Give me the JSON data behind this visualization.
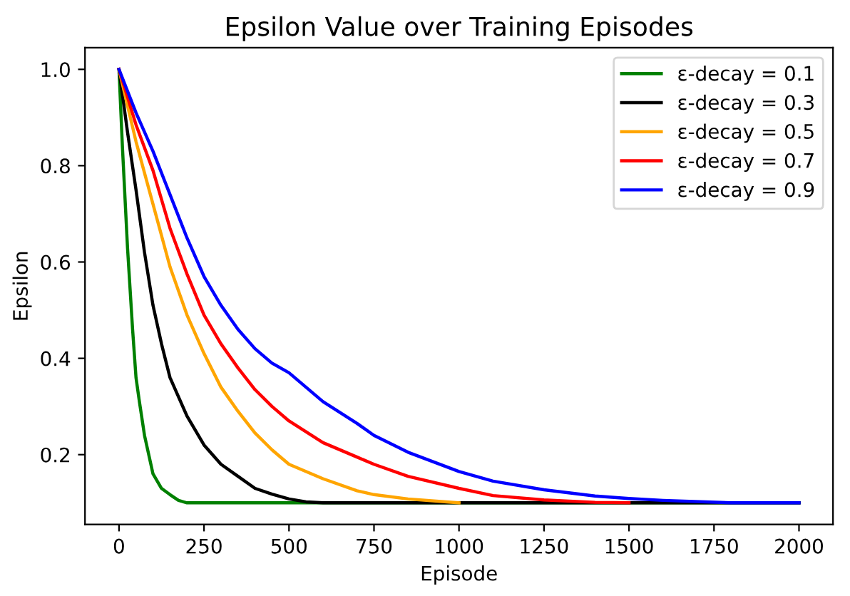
{
  "chart_data": {
    "type": "line",
    "title": "Epsilon Value over Training Episodes",
    "xlabel": "Episode",
    "ylabel": "Epsilon",
    "xlim": [
      -100,
      2100
    ],
    "ylim": [
      0.055,
      1.045
    ],
    "xticks": [
      0,
      250,
      500,
      750,
      1000,
      1250,
      1500,
      1750,
      2000
    ],
    "yticks": [
      0.2,
      0.4,
      0.6,
      0.8,
      {
        "value": 1.0,
        "label": "1.0"
      }
    ],
    "legend": "top right",
    "grid": false,
    "marker": "none",
    "line_style": "solid",
    "series": [
      {
        "name": "ε-decay = 0.1",
        "color": "#008000",
        "x": [
          0,
          10,
          25,
          40,
          50,
          60,
          75,
          100,
          125,
          150,
          175,
          200,
          2000
        ],
        "values": [
          1.0,
          0.84,
          0.63,
          0.46,
          0.36,
          0.31,
          0.24,
          0.16,
          0.13,
          0.117,
          0.105,
          0.1,
          0.1
        ]
      },
      {
        "name": "ε-decay = 0.3",
        "color": "#000000",
        "x": [
          0,
          25,
          50,
          75,
          100,
          125,
          150,
          200,
          250,
          300,
          350,
          400,
          450,
          500,
          550,
          600,
          2000
        ],
        "values": [
          1.0,
          0.87,
          0.75,
          0.62,
          0.51,
          0.43,
          0.36,
          0.28,
          0.22,
          0.18,
          0.155,
          0.13,
          0.118,
          0.108,
          0.102,
          0.1,
          0.1
        ]
      },
      {
        "name": "ε-decay = 0.5",
        "color": "#ffa500",
        "x": [
          0,
          50,
          100,
          150,
          200,
          250,
          300,
          350,
          400,
          450,
          500,
          600,
          700,
          750,
          850,
          1000
        ],
        "values": [
          1.0,
          0.85,
          0.72,
          0.59,
          0.49,
          0.41,
          0.34,
          0.29,
          0.245,
          0.21,
          0.18,
          0.15,
          0.125,
          0.117,
          0.108,
          0.1
        ]
      },
      {
        "name": "ε-decay = 0.7",
        "color": "#ff0000",
        "x": [
          0,
          50,
          100,
          150,
          200,
          250,
          300,
          350,
          400,
          450,
          500,
          600,
          700,
          750,
          850,
          1000,
          1100,
          1250,
          1400,
          1500
        ],
        "values": [
          1.0,
          0.885,
          0.79,
          0.67,
          0.575,
          0.49,
          0.43,
          0.38,
          0.335,
          0.3,
          0.27,
          0.225,
          0.195,
          0.18,
          0.155,
          0.13,
          0.115,
          0.106,
          0.101,
          0.1
        ]
      },
      {
        "name": "ε-decay = 0.9",
        "color": "#0000ff",
        "x": [
          0,
          50,
          100,
          150,
          200,
          250,
          300,
          350,
          400,
          450,
          500,
          600,
          700,
          750,
          850,
          1000,
          1100,
          1250,
          1400,
          1500,
          1600,
          1800,
          2000
        ],
        "values": [
          1.0,
          0.91,
          0.83,
          0.74,
          0.65,
          0.57,
          0.51,
          0.46,
          0.42,
          0.39,
          0.37,
          0.31,
          0.265,
          0.24,
          0.205,
          0.165,
          0.145,
          0.127,
          0.114,
          0.109,
          0.105,
          0.1,
          0.1
        ]
      }
    ]
  }
}
